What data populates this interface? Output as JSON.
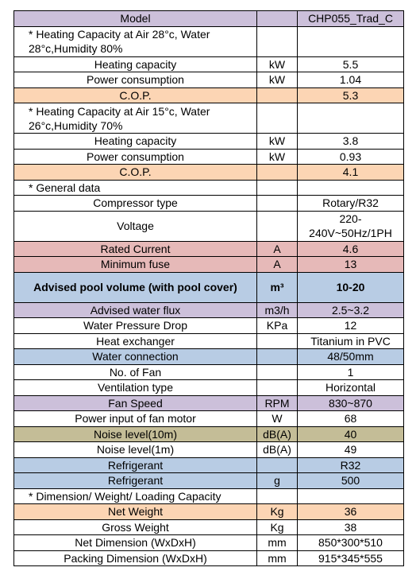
{
  "table": {
    "rows": [
      {
        "label": "Model",
        "value": "CHP055_Trad_C",
        "bg": "#ccc0da"
      },
      {
        "label": "* Heating Capacity at Air 28°c, Water 28°c,Humidity 80%",
        "note": true
      },
      {
        "label": "Heating capacity",
        "unit": "kW",
        "value": "5.5"
      },
      {
        "label": "Power consumption",
        "unit": "kW",
        "value": "1.04"
      },
      {
        "label": "C.O.P.",
        "value": "5.3",
        "bg": "#fcd5b4"
      },
      {
        "label": "* Heating Capacity at Air 15°c, Water 26°c,Humidity 70%",
        "note": true
      },
      {
        "label": "Heating capacity",
        "unit": "kW",
        "value": "3.8"
      },
      {
        "label": "Power consumption",
        "unit": "kW",
        "value": "0.93"
      },
      {
        "label": "C.O.P.",
        "value": "4.1",
        "bg": "#fcd5b4"
      },
      {
        "label": "* General data",
        "note": true
      },
      {
        "label": "Compressor type",
        "value": "Rotary/R32"
      },
      {
        "label": "Voltage",
        "value": "220-240V~50Hz/1PH",
        "tall": true
      },
      {
        "label": "Rated Current",
        "unit": "A",
        "value": "4.6",
        "bg": "#e6b9b8"
      },
      {
        "label": "Minimum fuse",
        "unit": "A",
        "value": "13",
        "bg": "#e6b9b8"
      },
      {
        "label": "Advised pool volume (with pool cover)",
        "unit": "m³",
        "value": "10-20",
        "bg": "#b8cce4",
        "bold": true,
        "tall": true
      },
      {
        "label": "Advised water flux",
        "unit": "m3/h",
        "value": "2.5~3.2",
        "bg": "#ccc0da"
      },
      {
        "label": "Water Pressure Drop",
        "unit": "KPa",
        "value": "12"
      },
      {
        "label": "Heat exchanger",
        "value": "Titanium in PVC"
      },
      {
        "label": "Water connection",
        "value": "48/50mm",
        "bg": "#b8cce4"
      },
      {
        "label": "No. of Fan",
        "value": "1"
      },
      {
        "label": "Ventilation type",
        "value": "Horizontal"
      },
      {
        "label": "Fan Speed",
        "unit": "RPM",
        "value": "830~870",
        "bg": "#ccc0da"
      },
      {
        "label": "Power input of fan motor",
        "unit": "W",
        "value": "68"
      },
      {
        "label": "Noise level(10m)",
        "unit": "dB(A)",
        "value": "40",
        "bg": "#c4bd97"
      },
      {
        "label": "Noise level(1m)",
        "unit": "dB(A)",
        "value": "49"
      },
      {
        "label": "Refrigerant",
        "value": "R32",
        "bg": "#b8cce4"
      },
      {
        "label": "Refrigerant",
        "unit": "g",
        "value": "500",
        "bg": "#b8cce4"
      },
      {
        "label": "* Dimension/ Weight/ Loading Capacity",
        "note": true
      },
      {
        "label": "Net Weight",
        "unit": "Kg",
        "value": "36",
        "bg": "#fcd5b4"
      },
      {
        "label": "Gross Weight",
        "unit": "Kg",
        "value": "38"
      },
      {
        "label": "Net Dimension (WxDxH)",
        "unit": "mm",
        "value": "850*300*510"
      },
      {
        "label": "Packing Dimension (WxDxH)",
        "unit": "mm",
        "value": "915*345*555"
      }
    ]
  }
}
